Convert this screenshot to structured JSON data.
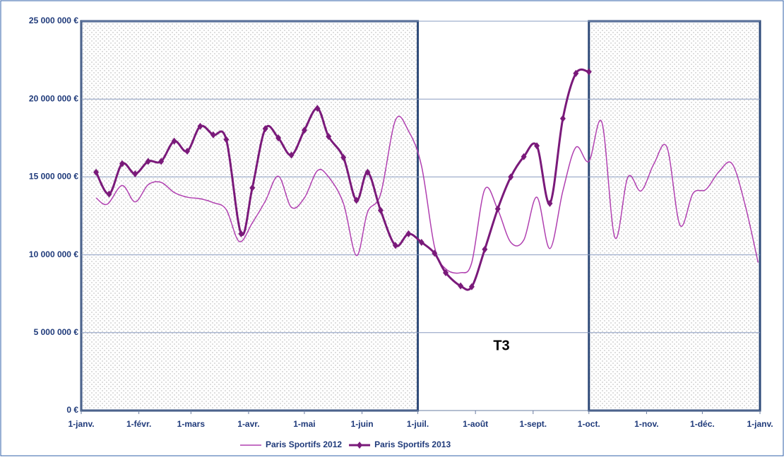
{
  "chart_data": {
    "type": "line",
    "xlim": [
      0,
      365
    ],
    "xticks": [
      {
        "value": 0,
        "label": "1-janv."
      },
      {
        "value": 31,
        "label": "1-févr."
      },
      {
        "value": 59,
        "label": "1-mars"
      },
      {
        "value": 90,
        "label": "1-avr."
      },
      {
        "value": 120,
        "label": "1-mai"
      },
      {
        "value": 151,
        "label": "1-juin"
      },
      {
        "value": 181,
        "label": "1-juil."
      },
      {
        "value": 212,
        "label": "1-août"
      },
      {
        "value": 243,
        "label": "1-sept."
      },
      {
        "value": 273,
        "label": "1-oct."
      },
      {
        "value": 304,
        "label": "1-nov."
      },
      {
        "value": 334,
        "label": "1-déc."
      },
      {
        "value": 365,
        "label": "1-janv."
      }
    ],
    "ylim": [
      0,
      25000000
    ],
    "yticks": [
      {
        "value": 0,
        "label": "0 €"
      },
      {
        "value": 5000000,
        "label": "5 000 000 €"
      },
      {
        "value": 10000000,
        "label": "10 000 000 €"
      },
      {
        "value": 15000000,
        "label": "15 000 000 €"
      },
      {
        "value": 20000000,
        "label": "20 000 000 €"
      },
      {
        "value": 25000000,
        "label": "25 000 000 €"
      }
    ],
    "grid": true,
    "shaded_ranges": [
      [
        0,
        181
      ],
      [
        273,
        365
      ]
    ],
    "annotation": "T3",
    "legend": "bottom",
    "series": [
      {
        "name": "Paris Sportifs 2012",
        "color": "#b040b0",
        "markers": false,
        "x": [
          8,
          14,
          22,
          29,
          36,
          43,
          50,
          57,
          64,
          71,
          78,
          85,
          92,
          99,
          106,
          113,
          120,
          127,
          133,
          141,
          148,
          154,
          161,
          169,
          176,
          183,
          190,
          196,
          204,
          210,
          217,
          224,
          231,
          238,
          245,
          252,
          259,
          266,
          273,
          280,
          287,
          294,
          301,
          308,
          315,
          322,
          329,
          336,
          343,
          350,
          357,
          364
        ],
        "values": [
          13650000,
          13250000,
          14450000,
          13400000,
          14500000,
          14650000,
          14000000,
          13700000,
          13600000,
          13350000,
          12900000,
          10850000,
          12050000,
          13450000,
          15050000,
          13050000,
          13650000,
          15400000,
          15000000,
          13300000,
          9950000,
          12750000,
          13900000,
          18650000,
          17950000,
          15700000,
          10500000,
          9100000,
          8850000,
          9500000,
          14200000,
          12900000,
          10800000,
          10950000,
          13700000,
          10400000,
          14100000,
          16900000,
          16000000,
          18500000,
          11100000,
          15000000,
          14100000,
          15850000,
          16900000,
          11900000,
          13950000,
          14200000,
          15350000,
          15850000,
          13200000,
          9500000
        ]
      },
      {
        "name": "Paris Sportifs 2013",
        "color": "#7a1a7a",
        "markers": true,
        "x": [
          8,
          15,
          22,
          29,
          36,
          43,
          50,
          57,
          64,
          71,
          78,
          86,
          92,
          99,
          106,
          113,
          120,
          127,
          133,
          141,
          148,
          154,
          161,
          169,
          176,
          183,
          190,
          196,
          204,
          210,
          217,
          224,
          231,
          238,
          245,
          252,
          259,
          266,
          273
        ],
        "values": [
          15300000,
          13900000,
          15850000,
          15200000,
          16000000,
          16000000,
          17300000,
          16650000,
          18250000,
          17700000,
          17400000,
          11350000,
          14300000,
          18100000,
          17500000,
          16400000,
          18000000,
          19400000,
          17600000,
          16250000,
          13500000,
          15300000,
          12850000,
          10600000,
          11350000,
          10800000,
          10100000,
          8850000,
          8000000,
          7950000,
          10350000,
          12950000,
          15000000,
          16300000,
          17000000,
          13300000,
          18750000,
          21650000,
          21750000
        ]
      }
    ]
  }
}
